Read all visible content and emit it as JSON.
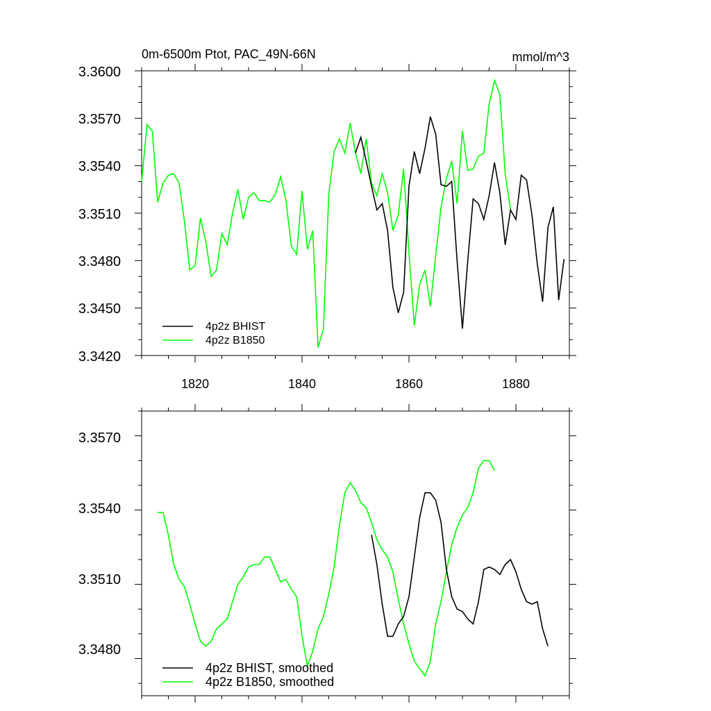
{
  "colors": {
    "bhist": "#000000",
    "b1850": "#00ff00"
  },
  "chart_data": [
    {
      "type": "line",
      "title_left": "0m-6500m Ptot, PAC_49N-66N",
      "title_right": "mmol/m^3",
      "xlim": [
        1810,
        1890
      ],
      "ylim": [
        3.342,
        3.36
      ],
      "yticks": [
        "3.3420",
        "3.3450",
        "3.3480",
        "3.3510",
        "3.3540",
        "3.3570",
        "3.3600"
      ],
      "xticks": [
        "1820",
        "1840",
        "1860",
        "1880"
      ],
      "legend_position": "bottom-left",
      "series": [
        {
          "name": "4p2z BHIST",
          "color": "#000000",
          "x": [
            1850,
            1851,
            1852,
            1853,
            1854,
            1855,
            1856,
            1857,
            1858,
            1859,
            1860,
            1861,
            1862,
            1863,
            1864,
            1865,
            1866,
            1867,
            1868,
            1869,
            1870,
            1871,
            1872,
            1873,
            1874,
            1875,
            1876,
            1877,
            1878,
            1879,
            1880,
            1881,
            1882,
            1883,
            1884,
            1885,
            1886,
            1887,
            1888,
            1889
          ],
          "y": [
            3.3548,
            3.3558,
            3.3543,
            3.3527,
            3.3512,
            3.3516,
            3.3499,
            3.3463,
            3.3447,
            3.346,
            3.3527,
            3.3549,
            3.3535,
            3.3551,
            3.3571,
            3.356,
            3.3528,
            3.3527,
            3.353,
            3.348,
            3.3437,
            3.348,
            3.3519,
            3.3516,
            3.3506,
            3.3521,
            3.3542,
            3.3523,
            3.349,
            3.3512,
            3.3506,
            3.3534,
            3.3531,
            3.3509,
            3.3478,
            3.3454,
            3.3501,
            3.3514,
            3.3455,
            3.3481
          ]
        },
        {
          "name": "4p2z B1850",
          "color": "#00ff00",
          "x": [
            1810,
            1811,
            1812,
            1813,
            1814,
            1815,
            1816,
            1817,
            1818,
            1819,
            1820,
            1821,
            1822,
            1823,
            1824,
            1825,
            1826,
            1827,
            1828,
            1829,
            1830,
            1831,
            1832,
            1833,
            1834,
            1835,
            1836,
            1837,
            1838,
            1839,
            1840,
            1841,
            1842,
            1843,
            1844,
            1845,
            1846,
            1847,
            1848,
            1849,
            1850,
            1851,
            1852,
            1853,
            1854,
            1855,
            1856,
            1857,
            1858,
            1859,
            1860,
            1861,
            1862,
            1863,
            1864,
            1865,
            1866,
            1867,
            1868,
            1869,
            1870,
            1871,
            1872,
            1873,
            1874,
            1875,
            1876,
            1877,
            1878,
            1879
          ],
          "y": [
            3.353,
            3.3566,
            3.3562,
            3.3517,
            3.3529,
            3.3534,
            3.3535,
            3.3529,
            3.3505,
            3.3474,
            3.3477,
            3.3507,
            3.3492,
            3.347,
            3.3474,
            3.3497,
            3.349,
            3.351,
            3.3525,
            3.3506,
            3.352,
            3.3523,
            3.3518,
            3.3518,
            3.3517,
            3.3522,
            3.3533,
            3.3518,
            3.3489,
            3.3484,
            3.3524,
            3.3487,
            3.3499,
            3.3425,
            3.3437,
            3.3522,
            3.3549,
            3.3557,
            3.3548,
            3.3567,
            3.3548,
            3.3535,
            3.3557,
            3.3529,
            3.3521,
            3.3535,
            3.3523,
            3.3499,
            3.3509,
            3.3538,
            3.3485,
            3.3439,
            3.3465,
            3.3474,
            3.3451,
            3.3483,
            3.3514,
            3.3532,
            3.3543,
            3.3516,
            3.3562,
            3.3537,
            3.3538,
            3.3546,
            3.3548,
            3.3579,
            3.3594,
            3.3585,
            3.3535,
            3.3512
          ]
        }
      ]
    },
    {
      "type": "line",
      "xlim": [
        1810,
        1890
      ],
      "ylim": [
        3.3465,
        3.358
      ],
      "yticks": [
        "3.3480",
        "3.3510",
        "3.3540",
        "3.3570"
      ],
      "legend_position": "bottom-left",
      "series": [
        {
          "name": "4p2z BHIST, smoothed",
          "color": "#000000",
          "x": [
            1853,
            1854,
            1855,
            1856,
            1857,
            1858,
            1859,
            1860,
            1861,
            1862,
            1863,
            1864,
            1865,
            1866,
            1867,
            1868,
            1869,
            1870,
            1871,
            1872,
            1873,
            1874,
            1875,
            1876,
            1877,
            1878,
            1879,
            1880,
            1881,
            1882,
            1883,
            1884,
            1885,
            1886
          ],
          "y": [
            3.353,
            3.3518,
            3.3502,
            3.3489,
            3.3489,
            3.3494,
            3.3497,
            3.3505,
            3.3521,
            3.3537,
            3.3547,
            3.3547,
            3.3544,
            3.3535,
            3.3516,
            3.3505,
            3.35,
            3.3499,
            3.3496,
            3.3494,
            3.3503,
            3.3516,
            3.3517,
            3.3516,
            3.3514,
            3.3518,
            3.352,
            3.3515,
            3.3508,
            3.3503,
            3.3502,
            3.3503,
            3.3492,
            3.3485
          ]
        },
        {
          "name": "4p2z B1850, smoothed",
          "color": "#00ff00",
          "x": [
            1813,
            1814,
            1815,
            1816,
            1817,
            1818,
            1819,
            1820,
            1821,
            1822,
            1823,
            1824,
            1825,
            1826,
            1827,
            1828,
            1829,
            1830,
            1831,
            1832,
            1833,
            1834,
            1835,
            1836,
            1837,
            1838,
            1839,
            1840,
            1841,
            1842,
            1843,
            1844,
            1845,
            1846,
            1847,
            1848,
            1849,
            1850,
            1851,
            1852,
            1853,
            1854,
            1855,
            1856,
            1857,
            1858,
            1859,
            1860,
            1861,
            1862,
            1863,
            1864,
            1865,
            1866,
            1867,
            1868,
            1869,
            1870,
            1871,
            1872,
            1873,
            1874,
            1875,
            1876
          ],
          "y": [
            3.3539,
            3.3539,
            3.353,
            3.3518,
            3.3512,
            3.3509,
            3.3502,
            3.3494,
            3.3487,
            3.3485,
            3.3487,
            3.3492,
            3.3494,
            3.3496,
            3.3503,
            3.351,
            3.3513,
            3.3517,
            3.3518,
            3.3518,
            3.3521,
            3.3521,
            3.3516,
            3.3511,
            3.3512,
            3.3508,
            3.3505,
            3.3489,
            3.3477,
            3.3483,
            3.3492,
            3.3497,
            3.3506,
            3.3517,
            3.3534,
            3.3547,
            3.3551,
            3.3548,
            3.3543,
            3.3541,
            3.3535,
            3.3528,
            3.3524,
            3.3521,
            3.3515,
            3.3504,
            3.3494,
            3.3486,
            3.3479,
            3.3476,
            3.3473,
            3.3479,
            3.3494,
            3.3503,
            3.3515,
            3.3526,
            3.3533,
            3.3538,
            3.3541,
            3.3547,
            3.3557,
            3.356,
            3.356,
            3.3556
          ]
        }
      ]
    }
  ]
}
